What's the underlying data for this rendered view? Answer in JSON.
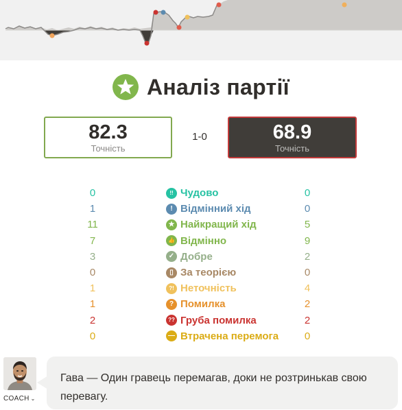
{
  "graph": {
    "background": "#f1f1f1",
    "white_area": "#cdcbc8",
    "line_color": "#8c8a88",
    "black_dip_color": "#403d39"
  },
  "title": {
    "icon": "star-icon",
    "icon_color": "#81b64c",
    "text": "Аналіз партії"
  },
  "accuracy": {
    "white": {
      "value": "82.3",
      "label": "Точність",
      "border": "#81a84e"
    },
    "black": {
      "value": "68.9",
      "label": "Точність",
      "border": "#c33a3a"
    },
    "score": "1-0"
  },
  "stats": [
    {
      "key": "brilliant",
      "label": "Чудово",
      "white": "0",
      "black": "0",
      "color": "#26c2a3",
      "icon": "brilliant-icon",
      "glyph": "!!"
    },
    {
      "key": "great",
      "label": "Відмінний хід",
      "white": "1",
      "black": "0",
      "color": "#5c8bb0",
      "icon": "great-move-icon",
      "glyph": "!"
    },
    {
      "key": "best",
      "label": "Найкращий хід",
      "white": "11",
      "black": "5",
      "color": "#81b64c",
      "icon": "best-move-icon",
      "glyph": "★"
    },
    {
      "key": "excellent",
      "label": "Відмінно",
      "white": "7",
      "black": "9",
      "color": "#81b64c",
      "icon": "excellent-icon",
      "glyph": "👍"
    },
    {
      "key": "good",
      "label": "Добре",
      "white": "3",
      "black": "2",
      "color": "#95af8a",
      "icon": "good-icon",
      "glyph": "✓"
    },
    {
      "key": "book",
      "label": "За теорією",
      "white": "0",
      "black": "0",
      "color": "#a88865",
      "icon": "book-icon",
      "glyph": "▯"
    },
    {
      "key": "inaccuracy",
      "label": "Неточність",
      "white": "1",
      "black": "4",
      "color": "#f0c15c",
      "icon": "inaccuracy-icon",
      "glyph": "?!"
    },
    {
      "key": "mistake",
      "label": "Помилка",
      "white": "1",
      "black": "2",
      "color": "#e6912c",
      "icon": "mistake-icon",
      "glyph": "?"
    },
    {
      "key": "blunder",
      "label": "Груба помилка",
      "white": "2",
      "black": "2",
      "color": "#ca3431",
      "icon": "blunder-icon",
      "glyph": "??"
    },
    {
      "key": "missed_win",
      "label": "Втрачена перемога",
      "white": "0",
      "black": "0",
      "color": "#dbac16",
      "icon": "missed-win-icon",
      "glyph": "—"
    }
  ],
  "coach": {
    "label": "COACH",
    "chevron": "⌄",
    "message": "Гава — Один гравець перемагав, доки не розтринькав свою перевагу."
  }
}
